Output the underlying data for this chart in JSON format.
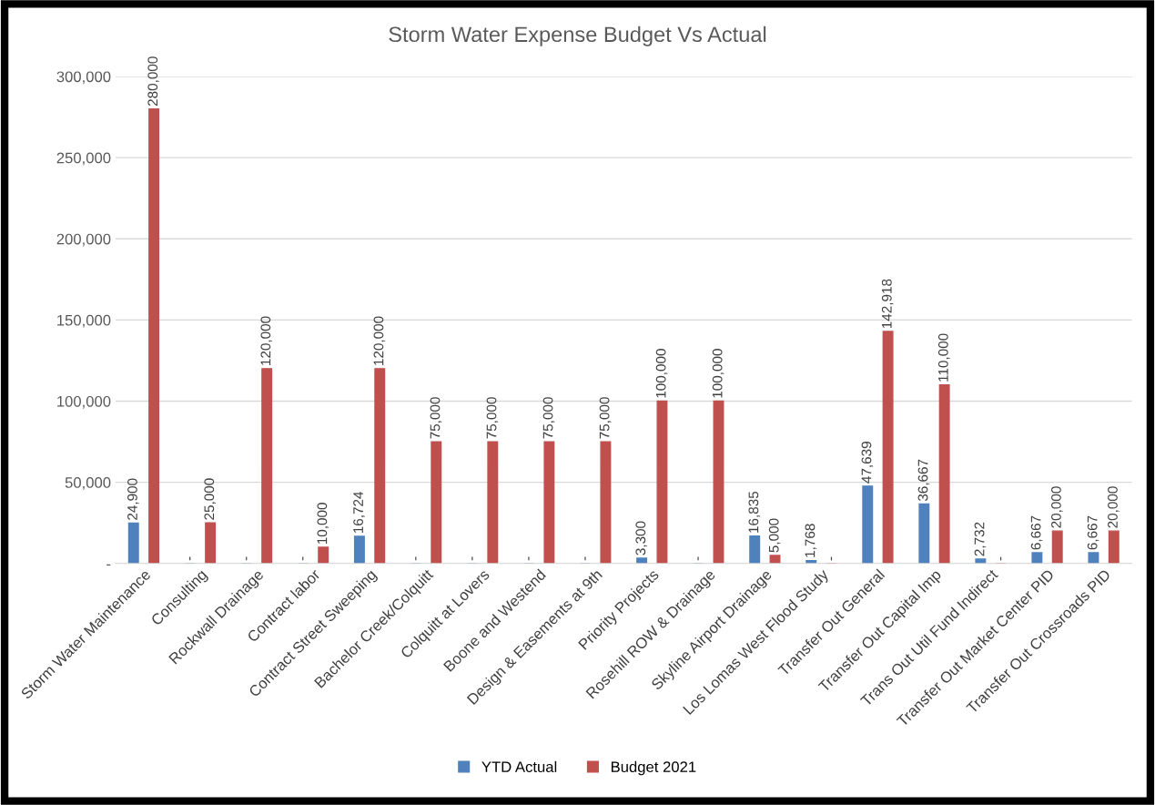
{
  "chart_data": {
    "type": "bar",
    "title": "Storm Water Expense Budget Vs Actual",
    "categories": [
      "Storm Water Maintenance",
      "Consulting",
      "Rockwall Drainage",
      "Contract labor",
      "Contract Street Sweeping",
      "Bachelor Creek/Colquitt",
      "Colquitt at Lovers",
      "Boone and Westend",
      "Design & Easements at 9th",
      "Priority Projects",
      "Rosehill ROW & Drainage",
      "Skyline Airport Drainage",
      "Los Lomas West Flood Study",
      "Transfer Out General",
      "Transfer Out Capital Imp",
      "Trans Out Util Fund Indirect",
      "Transfer Out Market Center PID",
      "Transfer Out Crossroads PID"
    ],
    "series": [
      {
        "name": "YTD Actual",
        "color": "#4f81bd",
        "values": [
          24900,
          0,
          0,
          0,
          16724,
          0,
          0,
          0,
          0,
          3300,
          0,
          16835,
          1768,
          47639,
          36667,
          2732,
          6667,
          6667
        ],
        "value_labels": [
          "24,900",
          "-",
          "-",
          "-",
          "16,724",
          "-",
          "-",
          "-",
          "-",
          "3,300",
          "-",
          "16,835",
          "1,768",
          "47,639",
          "36,667",
          "2,732",
          "6,667",
          "6,667"
        ]
      },
      {
        "name": "Budget 2021",
        "color": "#c0504d",
        "values": [
          280000,
          25000,
          120000,
          10000,
          120000,
          75000,
          75000,
          75000,
          75000,
          100000,
          100000,
          5000,
          0,
          142918,
          110000,
          0,
          20000,
          20000
        ],
        "value_labels": [
          "280,000",
          "25,000",
          "120,000",
          "10,000",
          "120,000",
          "75,000",
          "75,000",
          "75,000",
          "75,000",
          "100,000",
          "100,000",
          "5,000",
          "-",
          "142,918",
          "110,000",
          "-",
          "20,000",
          "20,000"
        ]
      }
    ],
    "ylim": [
      0,
      300000
    ],
    "yticks": [
      {
        "value": 0,
        "label": "-"
      },
      {
        "value": 50000,
        "label": "50,000"
      },
      {
        "value": 100000,
        "label": "100,000"
      },
      {
        "value": 150000,
        "label": "150,000"
      },
      {
        "value": 200000,
        "label": "200,000"
      },
      {
        "value": 250000,
        "label": "250,000"
      },
      {
        "value": 300000,
        "label": "300,000"
      }
    ],
    "grid": "y",
    "legend": "bottom"
  }
}
